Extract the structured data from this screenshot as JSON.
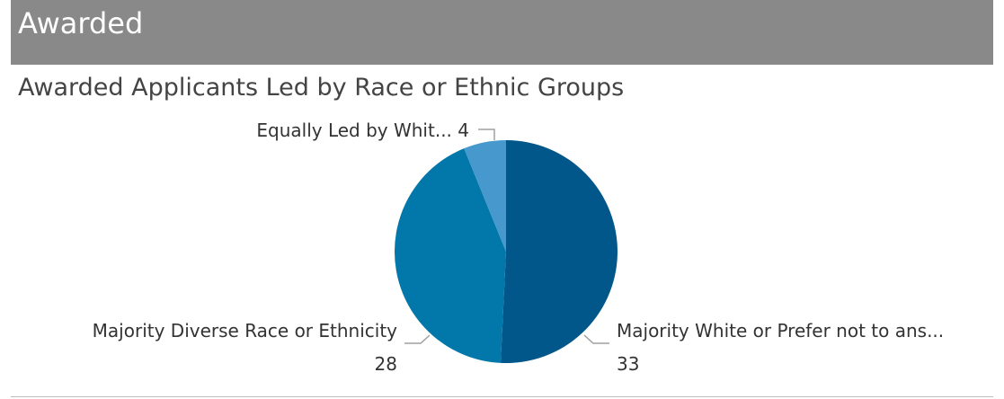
{
  "header": {
    "title": "Awarded"
  },
  "chart_data": {
    "type": "pie",
    "title": "Awarded Applicants Led by Race or Ethnic Groups",
    "categories": [
      "Majority White or Prefer not to ans...",
      "Majority Diverse Race or Ethnicity",
      "Equally Led by Whit..."
    ],
    "values": [
      33,
      28,
      4
    ],
    "colors": [
      "#01578a",
      "#0277aa",
      "#4799cd"
    ],
    "label_text": [
      "Majority White or Prefer not to ans...",
      "Majority Diverse Race or Ethnicity",
      "Equally Led by Whit... 4"
    ],
    "value_text": [
      "33",
      "28",
      ""
    ]
  }
}
